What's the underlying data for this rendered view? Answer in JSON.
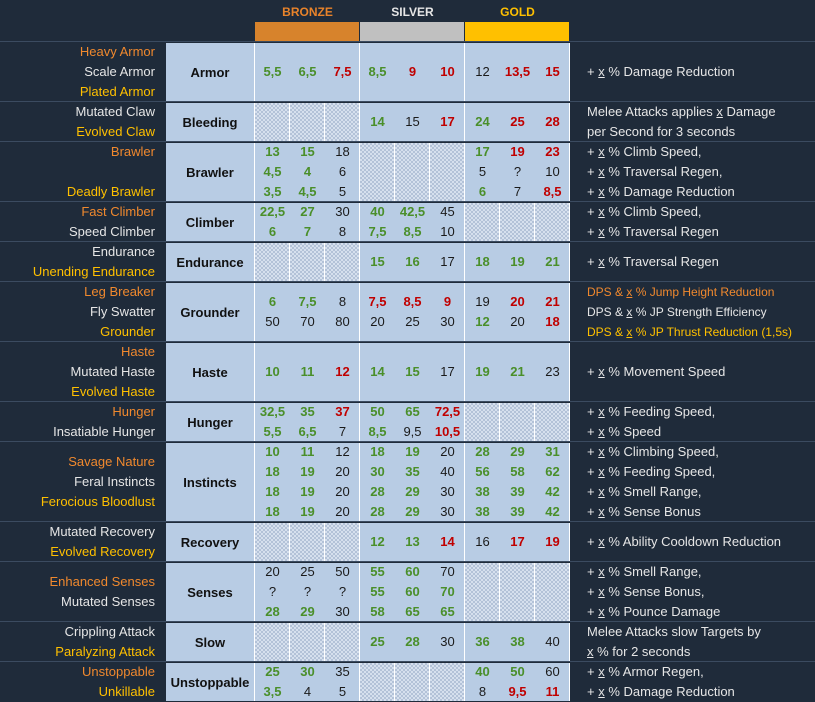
{
  "palette": {
    "o": "#f0892e",
    "w": "#e6e6e6",
    "y": "#ffc000",
    "g": "#4a8f2a",
    "r": "#c00000",
    "k": "#1a1a1a"
  },
  "header": {
    "tiers": [
      {
        "label": "BRONZE",
        "color": "#d7832c",
        "text_color": "#e8832a"
      },
      {
        "label": "SILVER",
        "color": "#c0c0c0",
        "text_color": "#e6e6e6"
      },
      {
        "label": "GOLD",
        "color": "#ffc000",
        "text_color": "#ffc000"
      }
    ]
  },
  "rows": [
    {
      "names": [
        {
          "text": "Heavy Armor",
          "color": "o"
        },
        {
          "text": "Scale Armor",
          "color": "w"
        },
        {
          "text": "Plated Armor",
          "color": "y"
        }
      ],
      "category": "Armor",
      "tiers": [
        [
          {
            "v": [
              "5,5",
              "6,5",
              "7,5"
            ],
            "c": "ggr"
          }
        ],
        [
          {
            "v": [
              "8,5",
              "9",
              "10"
            ],
            "c": "grr"
          }
        ],
        [
          {
            "v": [
              "12",
              "13,5",
              "15"
            ],
            "c": "krr"
          }
        ]
      ],
      "desc": [
        "+ x % Damage Reduction"
      ]
    },
    {
      "names": [
        {
          "text": "Mutated Claw",
          "color": "w"
        },
        {
          "text": "Evolved Claw",
          "color": "y"
        }
      ],
      "category": "Bleeding",
      "tiers": [
        null,
        [
          {
            "v": [
              "14",
              "15",
              "17"
            ],
            "c": "gkr"
          }
        ],
        [
          {
            "v": [
              "24",
              "25",
              "28"
            ],
            "c": "grr"
          }
        ]
      ],
      "desc": [
        "Melee Attacks applies x Damage",
        "per Second for 3 seconds"
      ]
    },
    {
      "names": [
        {
          "text": "Brawler",
          "color": "o"
        },
        null,
        {
          "text": "Deadly Brawler",
          "color": "y"
        }
      ],
      "category": "Brawler",
      "tiers": [
        [
          {
            "v": [
              "13",
              "15",
              "18"
            ],
            "c": "ggk"
          },
          {
            "v": [
              "4,5",
              "4",
              "6"
            ],
            "c": "ggk"
          },
          {
            "v": [
              "3,5",
              "4,5",
              "5"
            ],
            "c": "ggk"
          }
        ],
        null,
        [
          {
            "v": [
              "17",
              "19",
              "23"
            ],
            "c": "grr"
          },
          {
            "v": [
              "5",
              "?",
              "10"
            ],
            "c": "kkk"
          },
          {
            "v": [
              "6",
              "7",
              "8,5"
            ],
            "c": "gkr"
          }
        ]
      ],
      "desc": [
        "+ x % Climb Speed,",
        "+ x % Traversal Regen,",
        "+ x % Damage Reduction"
      ]
    },
    {
      "names": [
        {
          "text": "Fast Climber",
          "color": "o"
        },
        {
          "text": "Speed Climber",
          "color": "w"
        }
      ],
      "category": "Climber",
      "tiers": [
        [
          {
            "v": [
              "22,5",
              "27",
              "30"
            ],
            "c": "ggk"
          },
          {
            "v": [
              "6",
              "7",
              "8"
            ],
            "c": "ggk"
          }
        ],
        [
          {
            "v": [
              "40",
              "42,5",
              "45"
            ],
            "c": "ggk"
          },
          {
            "v": [
              "7,5",
              "8,5",
              "10"
            ],
            "c": "ggk"
          }
        ],
        null
      ],
      "desc": [
        "+ x % Climb Speed,",
        "+ x % Traversal Regen"
      ]
    },
    {
      "names": [
        {
          "text": "Endurance",
          "color": "w"
        },
        {
          "text": "Unending Endurance",
          "color": "y"
        }
      ],
      "category": "Endurance",
      "tiers": [
        null,
        [
          {
            "v": [
              "15",
              "16",
              "17"
            ],
            "c": "ggk"
          }
        ],
        [
          {
            "v": [
              "18",
              "19",
              "21"
            ],
            "c": "ggg"
          }
        ]
      ],
      "desc": [
        "+ x % Traversal Regen"
      ]
    },
    {
      "names": [
        {
          "text": "Leg Breaker",
          "color": "o"
        },
        {
          "text": "Fly Swatter",
          "color": "w"
        },
        {
          "text": "Grounder",
          "color": "y"
        }
      ],
      "category": "Grounder",
      "tiers": [
        [
          {
            "v": [
              "6",
              "7,5",
              "8"
            ],
            "c": "ggk"
          },
          {
            "v": [
              "50",
              "70",
              "80"
            ],
            "c": "kkk"
          }
        ],
        [
          {
            "v": [
              "7,5",
              "8,5",
              "9"
            ],
            "c": "rrr"
          },
          {
            "v": [
              "20",
              "25",
              "30"
            ],
            "c": "kkk"
          }
        ],
        [
          {
            "v": [
              "19",
              "20",
              "21"
            ],
            "c": "krr"
          },
          {
            "v": [
              "12",
              "20",
              "18"
            ],
            "c": "gkr"
          }
        ]
      ],
      "desc": [
        "DPS & x % Jump Height Reduction",
        "DPS & x % JP Strength Efficiency",
        "DPS & x % JP Thrust Reduction (1,5s)"
      ],
      "desc_colors": "owy"
    },
    {
      "names": [
        {
          "text": "Haste",
          "color": "o"
        },
        {
          "text": "Mutated Haste",
          "color": "w"
        },
        {
          "text": "Evolved Haste",
          "color": "y"
        }
      ],
      "category": "Haste",
      "tiers": [
        [
          {
            "v": [
              "10",
              "11",
              "12"
            ],
            "c": "ggr"
          }
        ],
        [
          {
            "v": [
              "14",
              "15",
              "17"
            ],
            "c": "ggk"
          }
        ],
        [
          {
            "v": [
              "19",
              "21",
              "23"
            ],
            "c": "ggk"
          }
        ]
      ],
      "desc": [
        "+ x % Movement Speed"
      ]
    },
    {
      "names": [
        {
          "text": "Hunger",
          "color": "o"
        },
        {
          "text": "Insatiable Hunger",
          "color": "w"
        }
      ],
      "category": "Hunger",
      "tiers": [
        [
          {
            "v": [
              "32,5",
              "35",
              "37"
            ],
            "c": "ggr"
          },
          {
            "v": [
              "5,5",
              "6,5",
              "7"
            ],
            "c": "ggk"
          }
        ],
        [
          {
            "v": [
              "50",
              "65",
              "72,5"
            ],
            "c": "ggr"
          },
          {
            "v": [
              "8,5",
              "9,5",
              "10,5"
            ],
            "c": "gkr"
          }
        ],
        null
      ],
      "desc": [
        "+ x % Feeding Speed,",
        "+ x % Speed"
      ]
    },
    {
      "names": [
        {
          "text": "Savage Nature",
          "color": "o"
        },
        {
          "text": "Feral Instincts",
          "color": "w"
        },
        {
          "text": "Ferocious Bloodlust",
          "color": "y"
        }
      ],
      "category": "Instincts",
      "tiers": [
        [
          {
            "v": [
              "10",
              "11",
              "12"
            ],
            "c": "ggk"
          },
          {
            "v": [
              "18",
              "19",
              "20"
            ],
            "c": "ggk"
          },
          {
            "v": [
              "18",
              "19",
              "20"
            ],
            "c": "ggk"
          },
          {
            "v": [
              "18",
              "19",
              "20"
            ],
            "c": "ggk"
          }
        ],
        [
          {
            "v": [
              "18",
              "19",
              "20"
            ],
            "c": "ggk"
          },
          {
            "v": [
              "30",
              "35",
              "40"
            ],
            "c": "ggk"
          },
          {
            "v": [
              "28",
              "29",
              "30"
            ],
            "c": "ggk"
          },
          {
            "v": [
              "28",
              "29",
              "30"
            ],
            "c": "ggk"
          }
        ],
        [
          {
            "v": [
              "28",
              "29",
              "31"
            ],
            "c": "ggg"
          },
          {
            "v": [
              "56",
              "58",
              "62"
            ],
            "c": "ggg"
          },
          {
            "v": [
              "38",
              "39",
              "42"
            ],
            "c": "ggg"
          },
          {
            "v": [
              "38",
              "39",
              "42"
            ],
            "c": "ggg"
          }
        ]
      ],
      "desc": [
        "+ x % Climbing Speed,",
        "+ x % Feeding Speed,",
        "+ x % Smell Range,",
        "+ x % Sense Bonus"
      ]
    },
    {
      "names": [
        {
          "text": "Mutated Recovery",
          "color": "w"
        },
        {
          "text": "Evolved Recovery",
          "color": "y"
        }
      ],
      "category": "Recovery",
      "tiers": [
        null,
        [
          {
            "v": [
              "12",
              "13",
              "14"
            ],
            "c": "ggr"
          }
        ],
        [
          {
            "v": [
              "16",
              "17",
              "19"
            ],
            "c": "krr"
          }
        ]
      ],
      "desc": [
        "+ x % Ability Cooldown Reduction"
      ]
    },
    {
      "names": [
        {
          "text": "Enhanced Senses",
          "color": "o"
        },
        {
          "text": "Mutated Senses",
          "color": "w"
        }
      ],
      "category": "Senses",
      "tiers": [
        [
          {
            "v": [
              "20",
              "25",
              "50"
            ],
            "c": "kkk"
          },
          {
            "v": [
              "?",
              "?",
              "?"
            ],
            "c": "kkk"
          },
          {
            "v": [
              "28",
              "29",
              "30"
            ],
            "c": "ggk"
          }
        ],
        [
          {
            "v": [
              "55",
              "60",
              "70"
            ],
            "c": "ggk"
          },
          {
            "v": [
              "55",
              "60",
              "70"
            ],
            "c": "ggg"
          },
          {
            "v": [
              "58",
              "65",
              "65"
            ],
            "c": "ggg"
          }
        ],
        null
      ],
      "desc": [
        "+ x % Smell Range,",
        "+ x % Sense Bonus,",
        "+ x % Pounce Damage"
      ]
    },
    {
      "names": [
        {
          "text": "Crippling Attack",
          "color": "w"
        },
        {
          "text": "Paralyzing Attack",
          "color": "y"
        }
      ],
      "category": "Slow",
      "tiers": [
        null,
        [
          {
            "v": [
              "25",
              "28",
              "30"
            ],
            "c": "ggk"
          }
        ],
        [
          {
            "v": [
              "36",
              "38",
              "40"
            ],
            "c": "ggk"
          }
        ]
      ],
      "desc": [
        "Melee Attacks slow Targets by",
        "x % for 2 seconds"
      ]
    },
    {
      "names": [
        {
          "text": "Unstoppable",
          "color": "o"
        },
        {
          "text": "Unkillable",
          "color": "y"
        }
      ],
      "category": "Unstoppable",
      "tiers": [
        [
          {
            "v": [
              "25",
              "30",
              "35"
            ],
            "c": "ggk"
          },
          {
            "v": [
              "3,5",
              "4",
              "5"
            ],
            "c": "gkk"
          }
        ],
        null,
        [
          {
            "v": [
              "40",
              "50",
              "60"
            ],
            "c": "ggk"
          },
          {
            "v": [
              "8",
              "9,5",
              "11"
            ],
            "c": "krr"
          }
        ]
      ],
      "desc": [
        "+ x % Armor Regen,",
        "+ x % Damage Reduction"
      ]
    }
  ]
}
